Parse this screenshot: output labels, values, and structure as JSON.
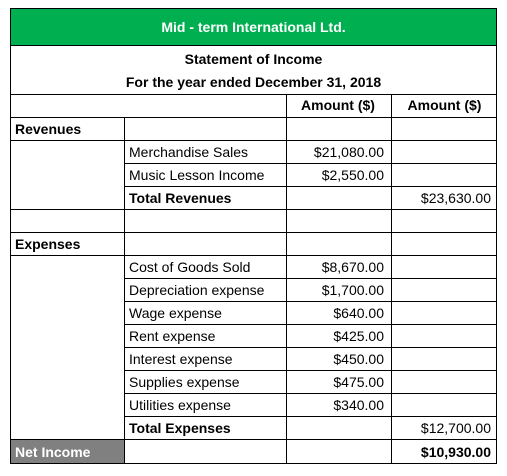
{
  "company": "Mid - term International Ltd.",
  "statement_title": "Statement of Income",
  "period": "For the year ended December 31, 2018",
  "col_headers": [
    "Amount ($)",
    "Amount ($)"
  ],
  "sections": {
    "revenues_label": "Revenues",
    "revenue_items": [
      {
        "label": "Merchandise Sales",
        "amount": "$21,080.00"
      },
      {
        "label": "Music Lesson Income",
        "amount": "$2,550.00"
      }
    ],
    "total_revenues_label": "Total Revenues",
    "total_revenues": "$23,630.00",
    "expenses_label": "Expenses",
    "expense_items": [
      {
        "label": "Cost of Goods Sold",
        "amount": "$8,670.00"
      },
      {
        "label": "Depreciation expense",
        "amount": "$1,700.00"
      },
      {
        "label": "Wage expense",
        "amount": "$640.00"
      },
      {
        "label": "Rent expense",
        "amount": "$425.00"
      },
      {
        "label": "Interest expense",
        "amount": "$450.00"
      },
      {
        "label": "Supplies expense",
        "amount": "$475.00"
      },
      {
        "label": "Utilities expense",
        "amount": "$340.00"
      }
    ],
    "total_expenses_label": "Total Expenses",
    "total_expenses": "$12,700.00",
    "net_income_label": "Net Income",
    "net_income": "$10,930.00"
  }
}
